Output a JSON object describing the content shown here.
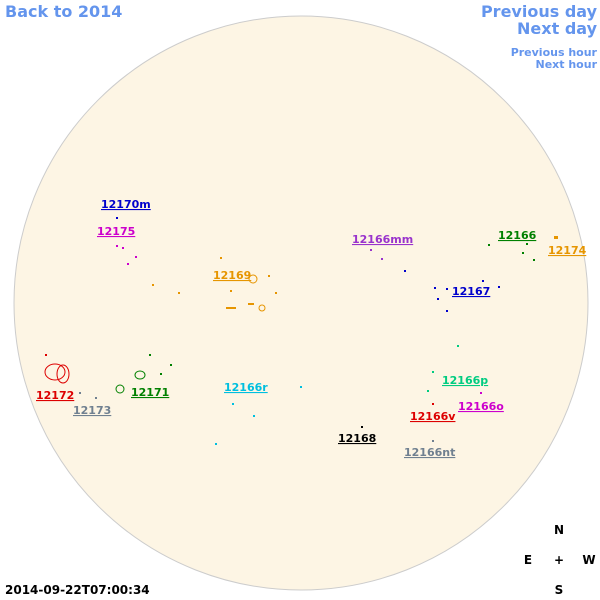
{
  "navigation": {
    "back": "Back to 2014",
    "previous_day": "Previous day",
    "next_day": "Next day",
    "previous_hour": "Previous hour",
    "next_hour": "Next hour"
  },
  "regions": [
    "12170m",
    "12175",
    "12169",
    "12166mm",
    "12166",
    "12174",
    "12167",
    "12172",
    "12173",
    "12171",
    "12166r",
    "12166p",
    "12166o",
    "12166v",
    "12168",
    "12166nt"
  ],
  "compass": {
    "north": "N",
    "east": "E",
    "center": "+",
    "west": "W",
    "south": "S"
  },
  "timestamp": "2014-09-22T07:00:34"
}
